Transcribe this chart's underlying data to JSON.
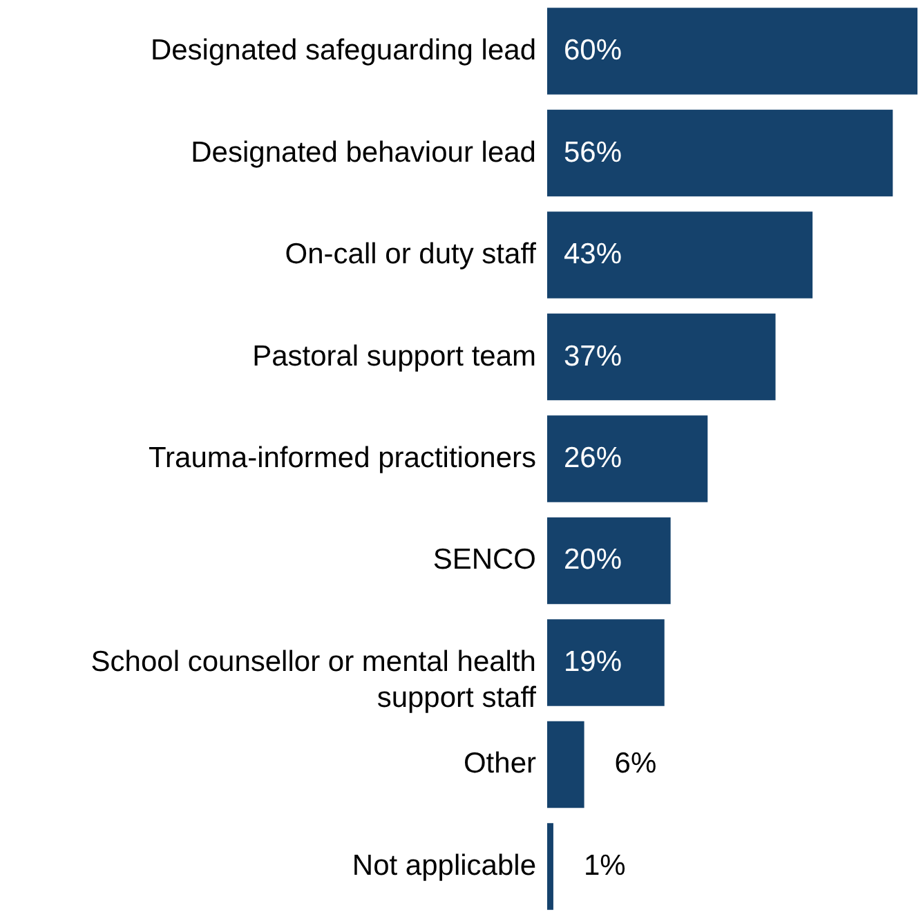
{
  "chart_data": {
    "type": "bar",
    "orientation": "horizontal",
    "categories": [
      "Designated safeguarding lead",
      "Designated behaviour lead",
      "On-call or duty staff",
      "Pastoral support team",
      "Trauma-informed practitioners",
      "SENCO",
      "School counsellor or mental health support staff",
      "Other",
      "Not applicable"
    ],
    "values": [
      60,
      56,
      43,
      37,
      26,
      20,
      19,
      6,
      1
    ],
    "value_labels": [
      "60%",
      "56%",
      "43%",
      "37%",
      "26%",
      "20%",
      "19%",
      "6%",
      "1%"
    ],
    "color": "#15426c"
  }
}
